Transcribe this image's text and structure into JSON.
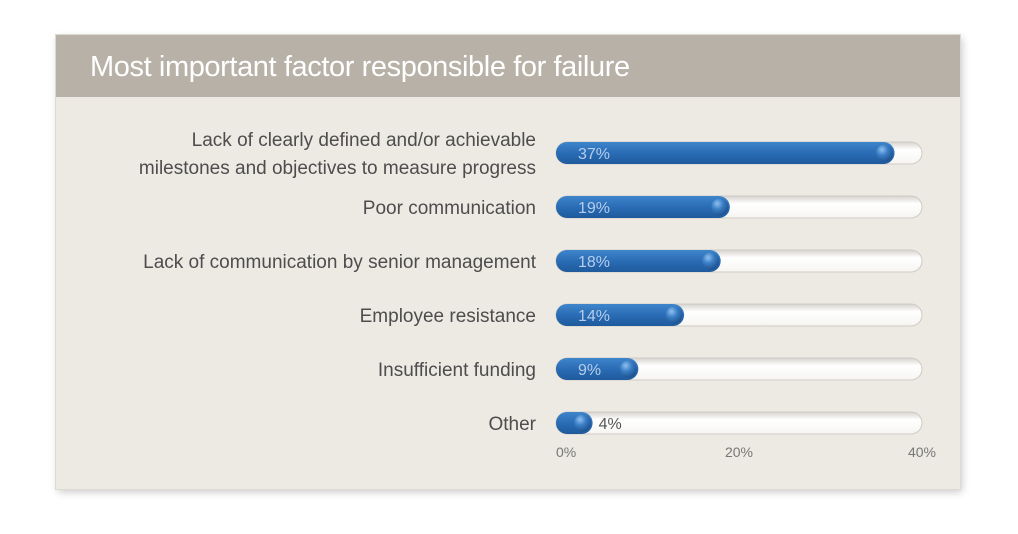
{
  "chart_data": {
    "type": "bar",
    "orientation": "horizontal",
    "title": "Most important factor responsible for failure",
    "categories": [
      [
        "Lack of clearly defined and/or achievable",
        "milestones and objectives to measure progress"
      ],
      [
        "Poor communication"
      ],
      [
        "Lack of communication by senior management"
      ],
      [
        "Employee resistance"
      ],
      [
        "Insufficient funding"
      ],
      [
        "Other"
      ]
    ],
    "values": [
      37,
      19,
      18,
      14,
      9,
      4
    ],
    "value_labels": [
      "37%",
      "19%",
      "18%",
      "14%",
      "9%",
      "4%"
    ],
    "xlim": [
      0,
      40
    ],
    "x_ticks": [
      0,
      20,
      40
    ],
    "x_tick_labels": [
      "0%",
      "20%",
      "40%"
    ],
    "grid": false,
    "legend": "none",
    "colors": {
      "bar": "#2a6cb5",
      "track": "#ffffff",
      "header": "#b7b1a7",
      "panel": "#edeae4"
    }
  }
}
